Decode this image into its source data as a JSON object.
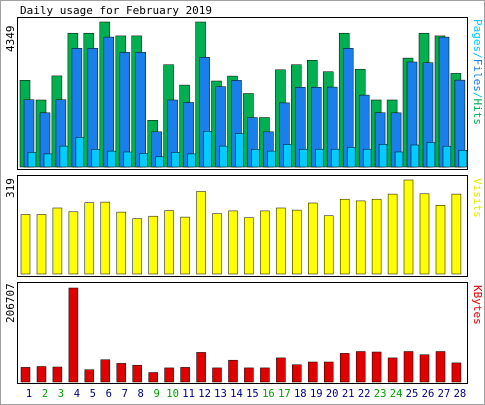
{
  "chart_data": [
    {
      "type": "bar",
      "title": "Daily usage for February 2019",
      "categories": [
        "1",
        "2",
        "3",
        "4",
        "5",
        "6",
        "7",
        "8",
        "9",
        "10",
        "11",
        "12",
        "13",
        "14",
        "15",
        "16",
        "17",
        "18",
        "19",
        "20",
        "21",
        "22",
        "23",
        "24",
        "25",
        "26",
        "27",
        "28"
      ],
      "weekend_color": "#00a000",
      "weekday_color": "#000080",
      "weekend_days": [
        "2",
        "3",
        "9",
        "10",
        "16",
        "17",
        "23",
        "24"
      ],
      "y_max_label": "4349",
      "ylim": [
        0,
        4349
      ],
      "series": [
        {
          "name": "Pages",
          "color": "#00ccff",
          "values": [
            441,
            392,
            626,
            888,
            528,
            476,
            449,
            409,
            306,
            441,
            392,
            1072,
            626,
            1003,
            528,
            476,
            677,
            535,
            535,
            535,
            588,
            535,
            677,
            449,
            661,
            736,
            625,
            500
          ]
        },
        {
          "name": "Files",
          "color": "#1a7fe8",
          "values": [
            2020,
            1625,
            2020,
            3561,
            3561,
            3896,
            3438,
            3438,
            1057,
            2010,
            1935,
            3289,
            2410,
            2597,
            1484,
            1057,
            1922,
            2390,
            2390,
            2397,
            3561,
            2158,
            1629,
            1625,
            3149,
            3127,
            3896,
            2606
          ]
        },
        {
          "name": "Hits",
          "color": "#00b050",
          "values": [
            2600,
            2010,
            2733,
            4013,
            4013,
            4349,
            3932,
            3932,
            1400,
            3068,
            2457,
            4349,
            2580,
            2726,
            2203,
            1484,
            2914,
            3068,
            3199,
            2857,
            4013,
            2932,
            2010,
            2010,
            3265,
            4013,
            3932,
            2806
          ]
        }
      ],
      "legend": "right-vertical"
    },
    {
      "type": "bar",
      "categories": [
        "1",
        "2",
        "3",
        "4",
        "5",
        "6",
        "7",
        "8",
        "9",
        "10",
        "11",
        "12",
        "13",
        "14",
        "15",
        "16",
        "17",
        "18",
        "19",
        "20",
        "21",
        "22",
        "23",
        "24",
        "25",
        "26",
        "27",
        "28"
      ],
      "y_max_label": "319",
      "ylim": [
        0,
        319
      ],
      "series": [
        {
          "name": "Visits",
          "color": "#ffff00",
          "values": [
            202,
            202,
            224,
            211,
            242,
            244,
            210,
            188,
            196,
            215,
            193,
            280,
            205,
            214,
            191,
            214,
            224,
            217,
            241,
            198,
            254,
            248,
            254,
            271,
            319,
            272,
            233,
            271
          ]
        }
      ],
      "legend": "right-vertical"
    },
    {
      "type": "bar",
      "categories": [
        "1",
        "2",
        "3",
        "4",
        "5",
        "6",
        "7",
        "8",
        "9",
        "10",
        "11",
        "12",
        "13",
        "14",
        "15",
        "16",
        "17",
        "18",
        "19",
        "20",
        "21",
        "22",
        "23",
        "24",
        "25",
        "26",
        "27",
        "28"
      ],
      "y_max_label": "206707",
      "ylim": [
        0,
        206707
      ],
      "series": [
        {
          "name": "KBytes",
          "color": "#e00000",
          "values": [
            32000,
            34000,
            33000,
            206707,
            27000,
            49000,
            41000,
            37000,
            21000,
            31000,
            32000,
            65000,
            31000,
            48000,
            31000,
            31000,
            53000,
            38000,
            44000,
            44000,
            63000,
            67000,
            66000,
            53000,
            67000,
            60000,
            67000,
            42000
          ]
        }
      ],
      "legend": "right-vertical"
    }
  ]
}
